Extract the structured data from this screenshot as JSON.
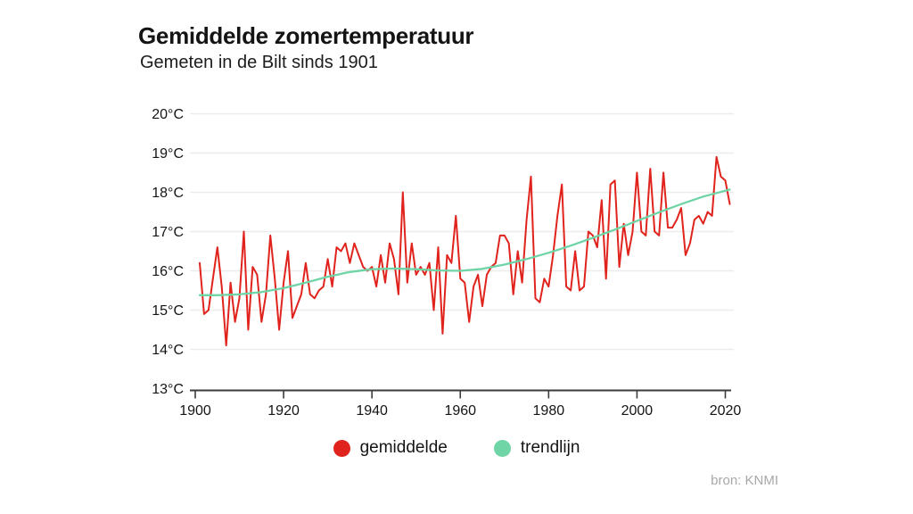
{
  "title": "Gemiddelde zomertemperatuur",
  "subtitle": "Gemeten in de Bilt sinds 1901",
  "source": "bron: KNMI",
  "colors": {
    "average_line": "#e0231c",
    "trend_line": "#6fd4a6",
    "grid": "#eeeceb",
    "axis": "#3b3b3b",
    "text": "#141414",
    "muted": "#a8a8a8"
  },
  "legend": [
    {
      "label": "gemiddelde",
      "color": "#e0231c"
    },
    {
      "label": "trendlijn",
      "color": "#6fd4a6"
    }
  ],
  "chart_data": {
    "type": "line",
    "title": "Gemiddelde zomertemperatuur",
    "subtitle": "Gemeten in de Bilt sinds 1901",
    "xlabel": "",
    "ylabel": "",
    "ylim": [
      13,
      20
    ],
    "xlim": [
      1900,
      2021
    ],
    "grid": "horizontal",
    "legend_position": "bottom",
    "y_ticks": [
      {
        "value": 20,
        "label": "20°C"
      },
      {
        "value": 19,
        "label": "19°C"
      },
      {
        "value": 18,
        "label": "18°C"
      },
      {
        "value": 17,
        "label": "17°C"
      },
      {
        "value": 16,
        "label": "16°C"
      },
      {
        "value": 15,
        "label": "15°C"
      },
      {
        "value": 14,
        "label": "14°C"
      },
      {
        "value": 13,
        "label": "13°C"
      }
    ],
    "x_ticks": [
      {
        "value": 1900,
        "label": "1900"
      },
      {
        "value": 1920,
        "label": "1920"
      },
      {
        "value": 1940,
        "label": "1940"
      },
      {
        "value": 1960,
        "label": "1960"
      },
      {
        "value": 1980,
        "label": "1980"
      },
      {
        "value": 2000,
        "label": "2000"
      },
      {
        "value": 2020,
        "label": "2020"
      }
    ],
    "series": [
      {
        "name": "gemiddelde",
        "color": "#e0231c",
        "start_year": 1901,
        "values": [
          16.2,
          14.9,
          15.0,
          15.8,
          16.6,
          15.6,
          14.1,
          15.7,
          14.7,
          15.3,
          17.0,
          14.5,
          16.1,
          15.9,
          14.7,
          15.4,
          16.9,
          15.8,
          14.5,
          15.7,
          16.5,
          14.8,
          15.1,
          15.4,
          16.2,
          15.4,
          15.3,
          15.5,
          15.6,
          16.3,
          15.6,
          16.6,
          16.5,
          16.7,
          16.2,
          16.7,
          16.4,
          16.1,
          16.0,
          16.1,
          15.6,
          16.4,
          15.7,
          16.7,
          16.3,
          15.4,
          18.0,
          15.7,
          16.7,
          15.9,
          16.1,
          15.9,
          16.2,
          15.0,
          16.6,
          14.4,
          16.4,
          16.2,
          17.4,
          15.8,
          15.7,
          14.7,
          15.6,
          15.9,
          15.1,
          15.9,
          16.1,
          16.2,
          16.9,
          16.9,
          16.7,
          15.4,
          16.5,
          15.7,
          17.3,
          18.4,
          15.3,
          15.2,
          15.8,
          15.6,
          16.4,
          17.4,
          18.2,
          15.6,
          15.5,
          16.5,
          15.5,
          15.6,
          17.0,
          16.9,
          16.6,
          17.8,
          15.8,
          18.2,
          18.3,
          16.1,
          17.2,
          16.4,
          17.0,
          18.5,
          17.0,
          16.9,
          18.6,
          17.0,
          16.9,
          18.5,
          17.1,
          17.1,
          17.3,
          17.6,
          16.4,
          16.7,
          17.3,
          17.4,
          17.2,
          17.5,
          17.4,
          18.9,
          18.4,
          18.3,
          17.7
        ]
      },
      {
        "name": "trendlijn",
        "color": "#6fd4a6",
        "points": [
          [
            1901,
            15.38
          ],
          [
            1905,
            15.38
          ],
          [
            1910,
            15.4
          ],
          [
            1915,
            15.46
          ],
          [
            1920,
            15.56
          ],
          [
            1925,
            15.7
          ],
          [
            1930,
            15.85
          ],
          [
            1935,
            15.97
          ],
          [
            1940,
            16.04
          ],
          [
            1945,
            16.06
          ],
          [
            1950,
            16.04
          ],
          [
            1955,
            16.01
          ],
          [
            1960,
            16.0
          ],
          [
            1965,
            16.05
          ],
          [
            1970,
            16.16
          ],
          [
            1975,
            16.3
          ],
          [
            1980,
            16.46
          ],
          [
            1985,
            16.64
          ],
          [
            1990,
            16.84
          ],
          [
            1995,
            17.05
          ],
          [
            2000,
            17.27
          ],
          [
            2005,
            17.49
          ],
          [
            2010,
            17.7
          ],
          [
            2015,
            17.89
          ],
          [
            2021,
            18.07
          ]
        ]
      }
    ]
  }
}
